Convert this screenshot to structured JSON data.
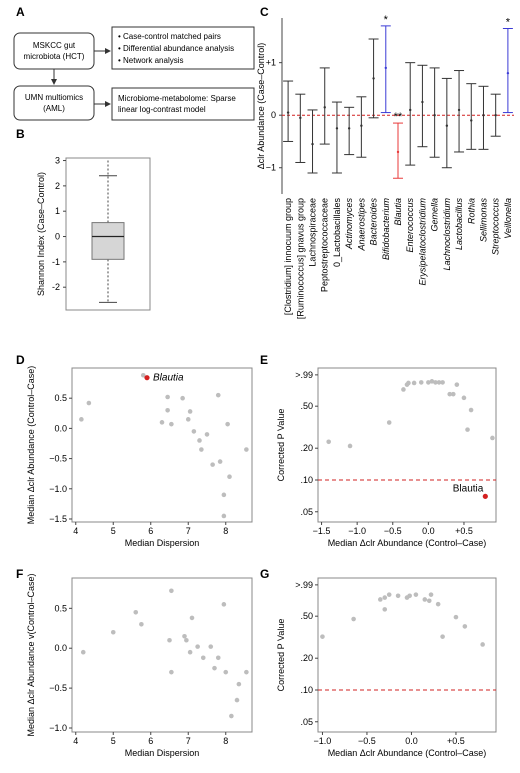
{
  "panels": {
    "A": {
      "label": "A",
      "node_mskcc": [
        "MSKCC gut",
        "microbiota (HCT)"
      ],
      "node_umn": [
        "UMN multiomics",
        "(AML)"
      ],
      "list_items": [
        "Case-control matched pairs",
        "Differential abundance analysis",
        "Network analysis"
      ],
      "bottom_box": [
        "Microbiome-metabolome: Sparse",
        "linear log-contrast model"
      ]
    },
    "B": {
      "label": "B"
    },
    "C": {
      "label": "C"
    },
    "D": {
      "label": "D",
      "highlight_label": "Blautia"
    },
    "E": {
      "label": "E",
      "highlight_label": "Blautia"
    },
    "F": {
      "label": "F"
    },
    "G": {
      "label": "G"
    }
  },
  "colors": {
    "significant_up": "#3b3bd6",
    "significant_down": "#e83a3a",
    "highlight_point": "#d42020",
    "ref_line": "#d22020",
    "point": "#bdbdbd",
    "box_fill": "#d6d6d6"
  },
  "chart_data": [
    {
      "id": "B",
      "type": "box",
      "ylabel": "Shannon Index (Case–Control)",
      "ylim": [
        -2.9,
        3.1
      ],
      "yticks": [
        -2,
        -1,
        0,
        1,
        2,
        3
      ],
      "stats": {
        "whisker_low": -2.6,
        "q1": -0.9,
        "median": 0.0,
        "q3": 0.55,
        "whisker_high": 2.4,
        "max": 3.0
      }
    },
    {
      "id": "C",
      "type": "errorbar",
      "ylabel": "Δclr Abundance (Case–Control)",
      "ylim": [
        -1.5,
        1.85
      ],
      "yticks": [
        -1,
        0,
        1
      ],
      "ytick_labels": [
        "−1",
        "0",
        "+1"
      ],
      "categories": [
        "[Clostridium] innocuum group",
        "[Ruminococcus] gnavus group",
        "Lachnospiraceae",
        "Peptostreptococcaceae",
        "0_Lactobacillales",
        "Actinomyces",
        "Anaerostipes",
        "Bacteroides",
        "Bifidobacterium",
        "Blautia",
        "Enterococcus",
        "Erysipelatoclostridium",
        "Gemella",
        "Lachnoclostridium",
        "Lactobacillus",
        "Rothia",
        "Sellimonas",
        "Streptococcus",
        "Veillonella"
      ],
      "italic": [
        false,
        false,
        false,
        false,
        false,
        true,
        true,
        true,
        true,
        true,
        true,
        true,
        true,
        true,
        true,
        true,
        true,
        true,
        true
      ],
      "low": [
        -0.5,
        -0.9,
        -1.1,
        -0.55,
        -1.1,
        -0.75,
        -0.8,
        -0.05,
        0.05,
        -1.2,
        -0.95,
        -0.6,
        -0.8,
        -1.0,
        -0.7,
        -0.65,
        -0.65,
        -0.4,
        0.05
      ],
      "mid": [
        0.05,
        -0.05,
        -0.55,
        0.15,
        -0.25,
        -0.25,
        -0.2,
        0.7,
        0.9,
        -0.7,
        0.1,
        0.25,
        0.0,
        -0.2,
        0.1,
        -0.1,
        0.0,
        0.0,
        0.8
      ],
      "high": [
        0.65,
        0.4,
        0.1,
        0.9,
        0.25,
        0.15,
        0.35,
        1.45,
        1.7,
        -0.15,
        1.0,
        0.95,
        0.9,
        0.7,
        0.85,
        0.6,
        0.55,
        0.4,
        1.65
      ],
      "markers": [
        "",
        "",
        "",
        "",
        "",
        "",
        "",
        "",
        "*",
        "**",
        "",
        "",
        "",
        "",
        "",
        "",
        "",
        "",
        "*"
      ],
      "status": [
        "ns",
        "ns",
        "ns",
        "ns",
        "ns",
        "ns",
        "ns",
        "ns",
        "up",
        "down",
        "ns",
        "ns",
        "ns",
        "ns",
        "ns",
        "ns",
        "ns",
        "ns",
        "up"
      ]
    },
    {
      "id": "D",
      "type": "scatter",
      "xlabel": "Median Dispersion",
      "ylabel": "Median Δclr Abundance (Control–Case)",
      "xlim": [
        3.9,
        8.7
      ],
      "ylim": [
        -1.55,
        1.0
      ],
      "xticks": [
        4,
        5,
        6,
        7,
        8
      ],
      "yticks": [
        0.5,
        0.0,
        -0.5,
        -1.0,
        -1.5
      ],
      "points": [
        [
          4.15,
          0.15
        ],
        [
          4.35,
          0.42
        ],
        [
          5.8,
          0.88
        ],
        [
          6.3,
          0.1
        ],
        [
          6.45,
          0.52
        ],
        [
          6.45,
          0.3
        ],
        [
          6.55,
          0.07
        ],
        [
          6.85,
          0.5
        ],
        [
          7.0,
          0.15
        ],
        [
          7.05,
          0.28
        ],
        [
          7.15,
          -0.05
        ],
        [
          7.3,
          -0.2
        ],
        [
          7.35,
          -0.35
        ],
        [
          7.5,
          -0.1
        ],
        [
          7.65,
          -0.6
        ],
        [
          7.8,
          0.55
        ],
        [
          7.85,
          -0.55
        ],
        [
          7.95,
          -1.1
        ],
        [
          7.95,
          -1.45
        ],
        [
          8.05,
          0.07
        ],
        [
          8.1,
          -0.8
        ],
        [
          8.55,
          -0.35
        ]
      ],
      "highlight": [
        5.9,
        0.84
      ]
    },
    {
      "id": "E",
      "type": "scatter",
      "xlabel": "Median Δclr Abundance (Control–Case)",
      "ylabel": "Corrected P Value",
      "y_scale": "log",
      "xlim": [
        -1.55,
        0.95
      ],
      "ylim": [
        0.04,
        1.15
      ],
      "xticks": [
        -1.5,
        -1.0,
        -0.5,
        0.0,
        0.5
      ],
      "xtick_labels": [
        "−1.5",
        "−1.0",
        "−0.5",
        "0.0",
        "+0.5"
      ],
      "yticks": [
        0.99,
        0.5,
        0.2,
        0.1,
        0.05
      ],
      "ytick_labels": [
        ">.99",
        ".50",
        ".20",
        ".10",
        ".05"
      ],
      "ref_line": 0.1,
      "points": [
        [
          -1.4,
          0.23
        ],
        [
          -1.1,
          0.21
        ],
        [
          -0.55,
          0.35
        ],
        [
          -0.35,
          0.72
        ],
        [
          -0.3,
          0.8
        ],
        [
          -0.28,
          0.83
        ],
        [
          -0.2,
          0.83
        ],
        [
          -0.1,
          0.84
        ],
        [
          0.0,
          0.84
        ],
        [
          0.05,
          0.86
        ],
        [
          0.1,
          0.84
        ],
        [
          0.15,
          0.84
        ],
        [
          0.2,
          0.84
        ],
        [
          0.3,
          0.65
        ],
        [
          0.35,
          0.65
        ],
        [
          0.4,
          0.8
        ],
        [
          0.5,
          0.6
        ],
        [
          0.55,
          0.3
        ],
        [
          0.6,
          0.46
        ],
        [
          0.9,
          0.25
        ]
      ],
      "highlight": [
        0.8,
        0.07
      ]
    },
    {
      "id": "F",
      "type": "scatter",
      "xlabel": "Median Dispersion",
      "ylabel": "Median Δclr Abundance v(Control–Case)",
      "xlim": [
        3.9,
        8.7
      ],
      "ylim": [
        -1.05,
        0.88
      ],
      "xticks": [
        4,
        5,
        6,
        7,
        8
      ],
      "yticks": [
        0.5,
        0.0,
        -0.5,
        -1.0
      ],
      "points": [
        [
          4.2,
          -0.05
        ],
        [
          5.0,
          0.2
        ],
        [
          5.6,
          0.45
        ],
        [
          5.75,
          0.3
        ],
        [
          6.5,
          0.1
        ],
        [
          6.55,
          0.72
        ],
        [
          6.55,
          -0.3
        ],
        [
          6.9,
          0.15
        ],
        [
          6.95,
          0.1
        ],
        [
          7.05,
          -0.05
        ],
        [
          7.1,
          0.38
        ],
        [
          7.25,
          0.02
        ],
        [
          7.4,
          -0.12
        ],
        [
          7.6,
          0.02
        ],
        [
          7.7,
          -0.25
        ],
        [
          7.8,
          -0.12
        ],
        [
          7.95,
          0.55
        ],
        [
          8.0,
          -0.3
        ],
        [
          8.15,
          -0.85
        ],
        [
          8.3,
          -0.65
        ],
        [
          8.35,
          -0.45
        ],
        [
          8.55,
          -0.3
        ]
      ]
    },
    {
      "id": "G",
      "type": "scatter",
      "xlabel": "Median Δclr Abundance (Control–Case)",
      "ylabel": "Corrected P Value",
      "y_scale": "log",
      "xlim": [
        -1.05,
        0.95
      ],
      "ylim": [
        0.04,
        1.15
      ],
      "xticks": [
        -1.0,
        -0.5,
        0.0,
        0.5
      ],
      "xtick_labels": [
        "−1.0",
        "−0.5",
        "0.0",
        "+0.5"
      ],
      "yticks": [
        0.99,
        0.5,
        0.2,
        0.1,
        0.05
      ],
      "ytick_labels": [
        ">.99",
        ".50",
        ".20",
        ".10",
        ".05"
      ],
      "ref_line": 0.1,
      "points": [
        [
          -1.0,
          0.32
        ],
        [
          -0.65,
          0.47
        ],
        [
          -0.35,
          0.72
        ],
        [
          -0.3,
          0.75
        ],
        [
          -0.3,
          0.58
        ],
        [
          -0.25,
          0.8
        ],
        [
          -0.15,
          0.78
        ],
        [
          -0.05,
          0.75
        ],
        [
          -0.02,
          0.78
        ],
        [
          0.05,
          0.8
        ],
        [
          0.15,
          0.72
        ],
        [
          0.2,
          0.7
        ],
        [
          0.22,
          0.8
        ],
        [
          0.3,
          0.65
        ],
        [
          0.35,
          0.32
        ],
        [
          0.5,
          0.49
        ],
        [
          0.6,
          0.4
        ],
        [
          0.8,
          0.27
        ]
      ]
    }
  ]
}
